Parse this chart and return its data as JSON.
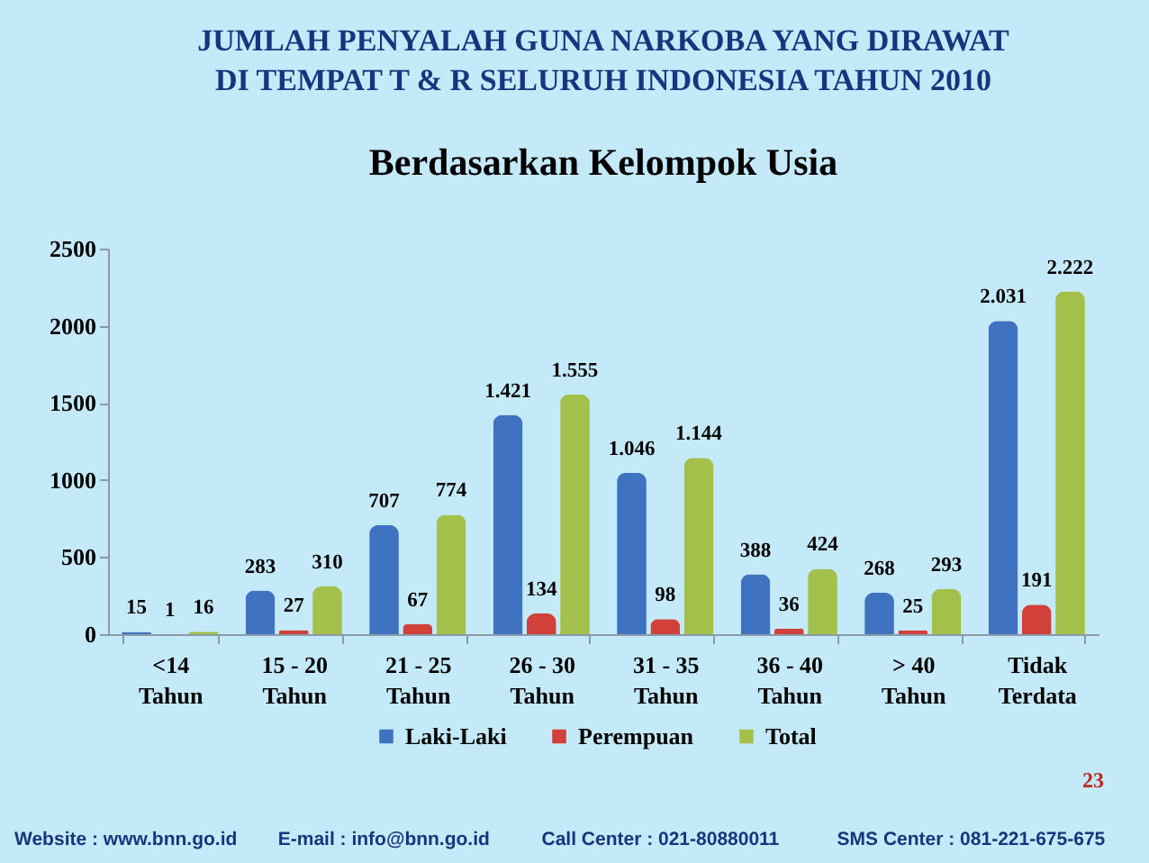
{
  "chart_data": {
    "type": "bar",
    "title": "JUMLAH PENYALAH GUNA NARKOBA YANG DIRAWAT\nDI TEMPAT T & R SELURUH INDONESIA TAHUN 2010",
    "subtitle": "Berdasarkan Kelompok Usia",
    "categories": [
      "<14\nTahun",
      "15 - 20\nTahun",
      "21 - 25\nTahun",
      "26 - 30\nTahun",
      "31 - 35\nTahun",
      "36 - 40\nTahun",
      "> 40\nTahun",
      "Tidak\nTerdata"
    ],
    "series": [
      {
        "name": "Laki-Laki",
        "color": "#3f72c0",
        "values": [
          15,
          283,
          707,
          1421,
          1046,
          388,
          268,
          2031
        ],
        "value_labels": [
          "15",
          "283",
          "707",
          "1.421",
          "1.046",
          "388",
          "268",
          "2.031"
        ]
      },
      {
        "name": "Perempuan",
        "color": "#d2403a",
        "values": [
          1,
          27,
          67,
          134,
          98,
          36,
          25,
          191
        ],
        "value_labels": [
          "1",
          "27",
          "67",
          "134",
          "98",
          "36",
          "25",
          "191"
        ]
      },
      {
        "name": "Total",
        "color": "#a3c14a",
        "values": [
          16,
          310,
          774,
          1555,
          1144,
          424,
          293,
          2222
        ],
        "value_labels": [
          "16",
          "310",
          "774",
          "1.555",
          "1.144",
          "424",
          "293",
          "2.222"
        ]
      }
    ],
    "ylim": [
      0,
      2500
    ],
    "yticks": [
      0,
      500,
      1000,
      1500,
      2000,
      2500
    ],
    "grid": false,
    "legend": "bottom",
    "annotations": [
      "23",
      "Website : www.bnn.go.id",
      "E-mail : info@bnn.go.id",
      "Call Center : 021-80880011",
      "SMS Center : 081-221-675-675"
    ]
  }
}
